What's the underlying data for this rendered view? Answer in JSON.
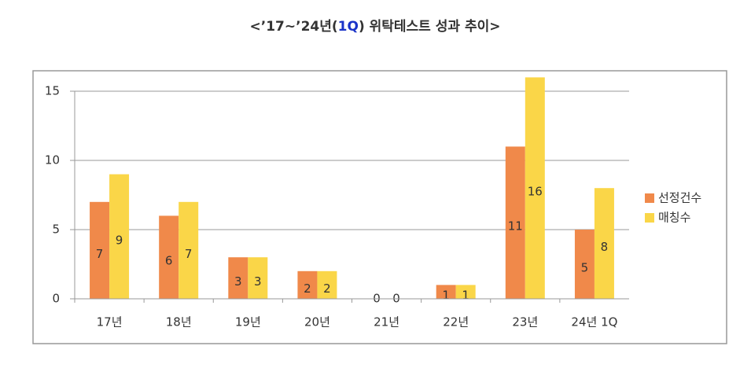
{
  "chart_data": {
    "type": "bar",
    "title_parts": [
      "<’17~’24년(",
      "1Q",
      ") 위탁테스트 성과 추이>"
    ],
    "title_highlight_color": "#1a33c8",
    "categories": [
      "17년",
      "18년",
      "19년",
      "20년",
      "21년",
      "22년",
      "23년",
      "24년 1Q"
    ],
    "series": [
      {
        "name": "선정건수",
        "color": "#f0894a",
        "values": [
          7,
          6,
          3,
          2,
          0,
          1,
          11,
          5
        ]
      },
      {
        "name": "매칭수",
        "color": "#fad648",
        "values": [
          9,
          7,
          3,
          2,
          0,
          1,
          16,
          8
        ]
      }
    ],
    "ylim": [
      0,
      15
    ],
    "yticks": [
      0,
      5,
      10,
      15
    ],
    "grid": true,
    "legend": "right"
  }
}
